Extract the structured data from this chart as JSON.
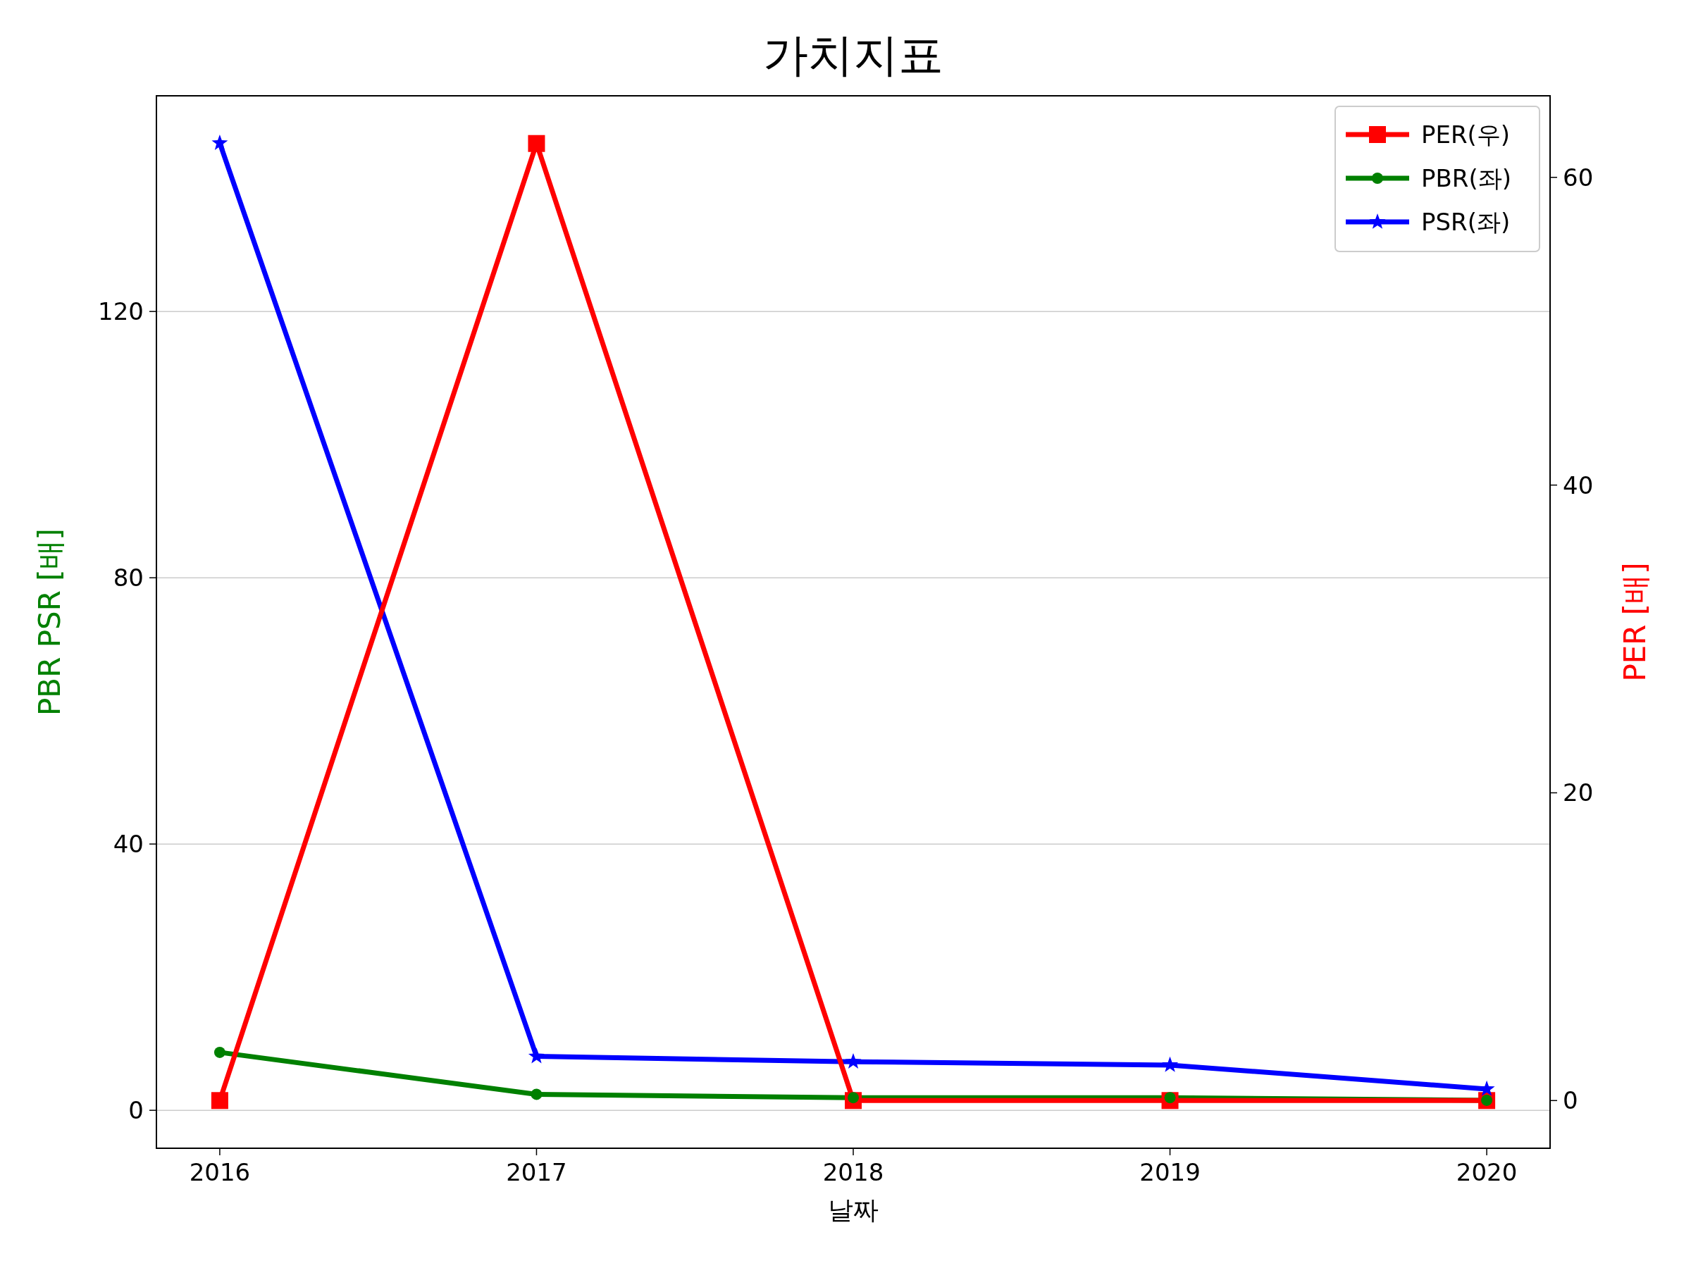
{
  "chart_data": {
    "type": "line",
    "title": "가치지표",
    "xlabel": "날짜",
    "ylabel": "PBR PSR [배]",
    "y2label": "PER [배]",
    "x": [
      2016,
      2017,
      2018,
      2019,
      2020
    ],
    "xlim": [
      2015.8,
      2020.2
    ],
    "xticks": [
      2016,
      2017,
      2018,
      2019,
      2020
    ],
    "ylim": [
      -5.7,
      152.4
    ],
    "yticks": [
      0,
      40,
      80,
      120
    ],
    "y2lim": [
      -3.1,
      65.3
    ],
    "y2ticks": [
      0,
      20,
      40,
      60
    ],
    "grid": "y",
    "legend": "top right",
    "series": [
      {
        "name": "PER(우)",
        "color": "#ff0000",
        "axis": "y2",
        "marker": "square",
        "values": [
          0,
          62.2,
          0,
          0,
          0
        ]
      },
      {
        "name": "PBR(좌)",
        "color": "#008000",
        "marker": "circle",
        "values": [
          8.7,
          2.4,
          1.9,
          1.9,
          1.5
        ]
      },
      {
        "name": "PSR(좌)",
        "color": "#0000ff",
        "marker": "star",
        "values": [
          145.3,
          8.1,
          7.3,
          6.8,
          3.2
        ]
      }
    ]
  }
}
